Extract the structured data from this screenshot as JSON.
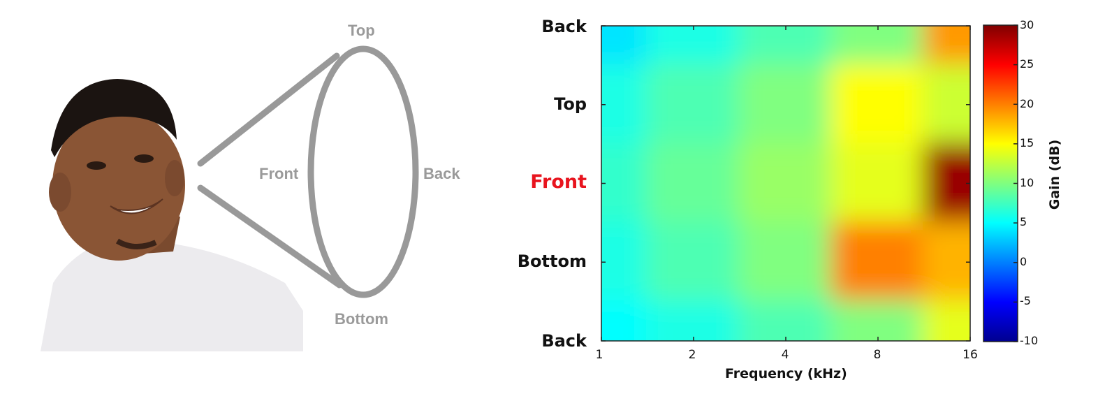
{
  "diagram": {
    "labels": {
      "top": "Top",
      "bottom": "Bottom",
      "front": "Front",
      "back": "Back"
    }
  },
  "chart_data": {
    "type": "heatmap",
    "title": "",
    "xlabel": "Frequency (kHz)",
    "ylabel": "",
    "x_scale": "log",
    "xlim": [
      1,
      16
    ],
    "x_ticks": [
      "1",
      "2",
      "4",
      "8",
      "16"
    ],
    "y_ticks": [
      "Back",
      "Top",
      "Front",
      "Bottom",
      "Back"
    ],
    "highlight_y_tick": "Front",
    "highlight_color": "#e8141e",
    "colorbar": {
      "label": "Gain (dB)",
      "range": [
        -10,
        30
      ],
      "ticks": [
        "30",
        "25",
        "20",
        "15",
        "10",
        "5",
        "0",
        "-5",
        "-10"
      ],
      "colormap": "jet"
    },
    "x": [
      1,
      2,
      4,
      8,
      16
    ],
    "y": [
      "Back",
      "Top",
      "Front",
      "Bottom",
      "Back"
    ],
    "values": [
      [
        4,
        6,
        8,
        10,
        19
      ],
      [
        6,
        8,
        10,
        15,
        13
      ],
      [
        7,
        9,
        11,
        14,
        29
      ],
      [
        6,
        8,
        10,
        20,
        18
      ],
      [
        5,
        6,
        8,
        10,
        14
      ]
    ]
  }
}
